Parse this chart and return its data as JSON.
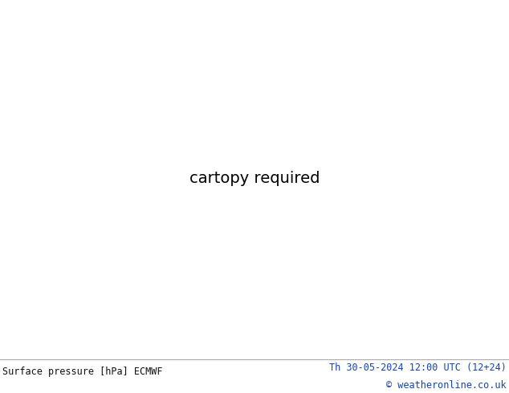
{
  "title_left": "Surface pressure [hPa] ECMWF",
  "title_right": "Th 30-05-2024 12:00 UTC (12+24)",
  "copyright": "© weatheronline.co.uk",
  "bg_color": "#ffffff",
  "land_color": "#cceecc",
  "mountain_color": "#bbbbbb",
  "sea_color": "#e8e8f0",
  "text_color_dark": "#111111",
  "text_color_blue": "#1144bb",
  "text_color_red": "#cc0000",
  "isobar_blue": "#3366cc",
  "isobar_red": "#cc2200",
  "isobar_black": "#111111",
  "figsize": [
    6.34,
    4.9
  ],
  "dpi": 100,
  "bottom_bar_height": 0.09,
  "title_fontsize": 8.5,
  "label_fontsize": 6.5,
  "extent": [
    -175,
    -40,
    15,
    85
  ]
}
